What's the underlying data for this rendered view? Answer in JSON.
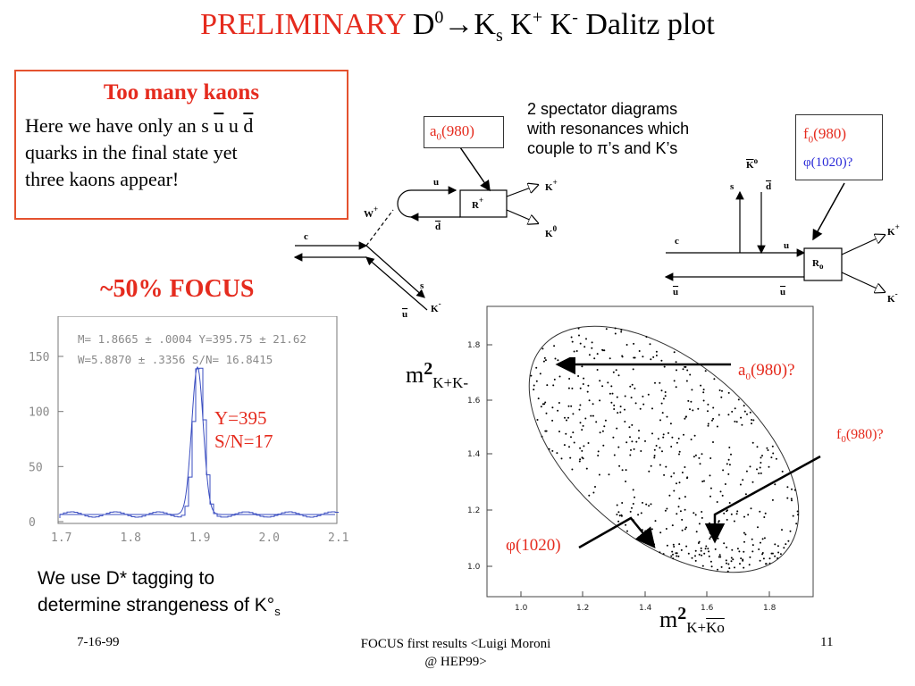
{
  "title": {
    "prefix": "PRELIMINARY",
    "d": "D",
    "d_sup": "0",
    "arrow": "→",
    "ks": "K",
    "ks_sub": "s",
    "kp": "K",
    "kp_sup": "+",
    "km": "K",
    "km_sup": "-",
    "rest": "Dalitz plot"
  },
  "kaon_box": {
    "heading": "Too many kaons",
    "line1_pre": "Here we have only an s ",
    "q1": "u",
    "q2": " u ",
    "q3": "d",
    "line2": "quarks in the  final state yet",
    "line3": "three kaons appear!"
  },
  "focus_label": "~50% FOCUS",
  "spectator": {
    "line1": "2 spectator diagrams",
    "line2": "with resonances which",
    "line3": "couple to π’s and K’s"
  },
  "left_diagram": {
    "box_label": "a",
    "box_sub": "0",
    "box_rest": "(980)",
    "labels": {
      "u": "u",
      "d": "d",
      "w": "W",
      "w_sup": "+",
      "c": "c",
      "s": "s",
      "ubar": "u",
      "r": "R",
      "r_sup": "+",
      "kplus": "K",
      "kplus_sup": "+",
      "k0": "K",
      "k0_sup": "0",
      "kminus": "K",
      "kminus_sup": "-"
    }
  },
  "right_diagram": {
    "box_line1_a": "f",
    "box_line1_sub": "0",
    "box_line1_b": "(980)",
    "box_line2": "φ(1020)?",
    "labels": {
      "k0": "K",
      "k0_sup": "o",
      "s": "s",
      "d": "d",
      "c": "c",
      "u": "u",
      "r": "R",
      "r_sub": "o",
      "ubar1": "u",
      "ubar2": "u",
      "kplus": "K",
      "kplus_sup": "+",
      "kminus": "K",
      "kminus_sup": "-"
    }
  },
  "mass_plot": {
    "fit_line1": "M= 1.8665 ± .0004 Y=395.75 ± 21.62",
    "fit_line2": "W=5.8870 ± .3356 S/N= 16.8415",
    "yticks": [
      "0",
      "50",
      "100",
      "150"
    ],
    "xticks": [
      "1.7",
      "1.8",
      "1.9",
      "2.0",
      "2.1"
    ],
    "yield_line1": "Y=395",
    "yield_line2": "S/N=17"
  },
  "dstar_note": {
    "line1": "We use D* tagging to",
    "line2_pre": "determine strangeness of K°",
    "line2_sub": "s"
  },
  "dalitz": {
    "yticks": [
      "1.0",
      "1.2",
      "1.4",
      "1.6",
      "1.8"
    ],
    "xticks": [
      "1.0",
      "1.2",
      "1.4",
      "1.6",
      "1.8"
    ],
    "y_label_main": "m",
    "y_label_sup": "2",
    "y_label_sub": "K+K-",
    "x_label_main": "m",
    "x_label_sup": "2",
    "x_label_sub_pre": "K+",
    "x_label_sub_bar": "Ko",
    "ann_a0_pre": "a",
    "ann_a0_sub": "0",
    "ann_a0_rest": "(980)?",
    "ann_f0_pre": "f",
    "ann_f0_sub": "0",
    "ann_f0_rest": "(980)?",
    "ann_phi": "φ(1020)"
  },
  "footer": {
    "date": "7-16-99",
    "center_line1": "FOCUS first results <Luigi Moroni",
    "center_line2": "@ HEP99>",
    "page": "11"
  },
  "colors": {
    "accent_red": "#e52b1e",
    "phi_blue": "#2a2ad8",
    "histogram_blue": "#3a4dc0"
  }
}
